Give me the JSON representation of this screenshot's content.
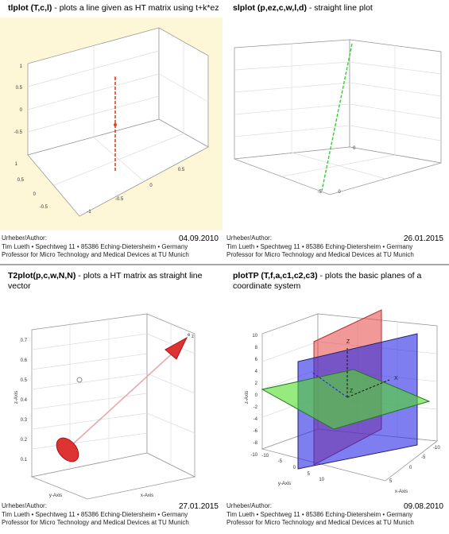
{
  "panels": [
    {
      "title_bold": "tlplot (T,c,l)",
      "title_rest": " - plots a line given as HT matrix using t+k*ez",
      "author_label": "Urheber/Author:",
      "date": "04.09.2010",
      "author_line1": "Tim Lueth • Spechtweg 11 • 85386 Eching-Dietersheim • Germany",
      "author_line2": "Professor for Micro Technology and Medical Devices at TU Munich",
      "tick_labels": [
        "1",
        "0.5",
        "0",
        "-0.5",
        "1",
        "0.5",
        "0",
        "-0.5",
        "-1",
        "-0.5",
        "0",
        "0.5"
      ]
    },
    {
      "title_bold": "slplot (p,ez,c,w,l,d)",
      "title_rest": " - straight line plot",
      "author_label": "Urheber/Author:",
      "date": "26.01.2015",
      "author_line1": "Tim Lueth • Spechtweg 11 • 85386 Eching-Dietersheim • Germany",
      "author_line2": "Professor for Micro Technology and Medical Devices at TU Munich",
      "tick_labels": [
        "-5",
        "0",
        "0"
      ]
    },
    {
      "title_bold": "T2plot(p,c,w,N,N)",
      "title_rest": " - plots  a HT matrix as straight line",
      "title_line2": "vector",
      "author_label": "Urheber/Author:",
      "date": "27.01.2015",
      "author_line1": "Tim Lueth • Spechtweg 11 • 85386 Eching-Dietersheim • Germany",
      "author_line2": "Professor for Micro Technology and Medical Devices at TU Munich",
      "tick_labels": [
        "0.7",
        "0.6",
        "0.5",
        "0.4",
        "0.3",
        "0.2",
        "0.1",
        "z-Axis",
        "y-Axis",
        "x-Axis",
        "e",
        "z"
      ]
    },
    {
      "title_bold": "plotTP (T,f,a,c1,c2,c3)",
      "title_rest": " - plots the basic planes of a",
      "title_line2": "coordinate system",
      "author_label": "Urheber/Author:",
      "date": "09.08.2010",
      "author_line1": "Tim Lueth • Spechtweg 11 • 85386 Eching-Dietersheim • Germany",
      "author_line2": "Professor for Micro Technology and Medical Devices at TU Munich",
      "tick_labels": [
        "10",
        "8",
        "6",
        "4",
        "2",
        "0",
        "-2",
        "-4",
        "-6",
        "-8",
        "-10",
        "z-Axis",
        "y-Axis",
        "x-Axis",
        "Z",
        "X",
        "Z",
        "-10",
        "-5",
        "0",
        "5",
        "10",
        "5",
        "0",
        "-5",
        "-10"
      ]
    }
  ]
}
